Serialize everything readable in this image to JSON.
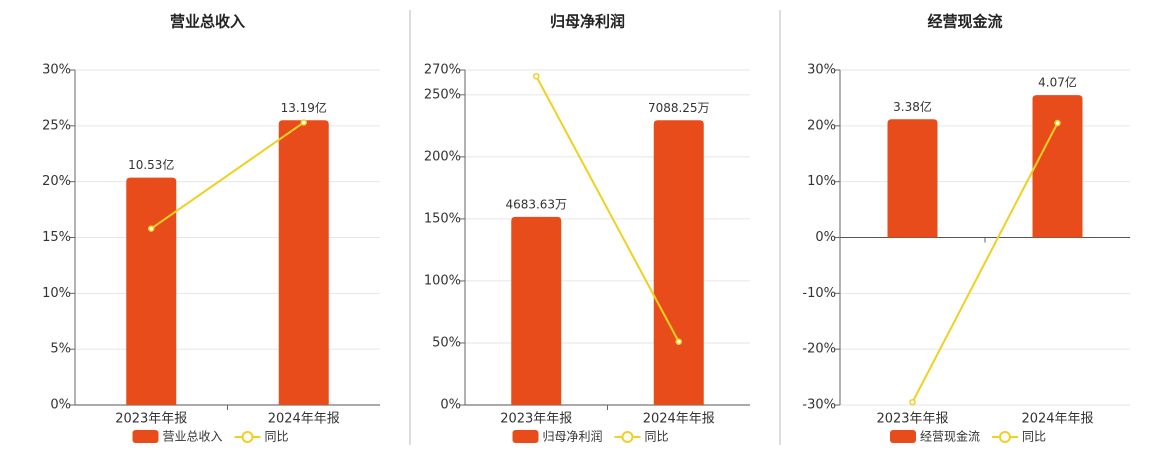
{
  "chart_data": [
    {
      "type": "combo",
      "title": "营业总收入",
      "categories": [
        "2023年年报",
        "2024年年报"
      ],
      "series": [
        {
          "name": "营业总收入",
          "type": "bar",
          "color": "#e84c1a",
          "values": [
            10.53,
            13.19
          ],
          "value_labels": [
            "10.53亿",
            "13.19亿"
          ]
        },
        {
          "name": "同比",
          "type": "line",
          "color": "#f0d020",
          "values": [
            15.8,
            25.3
          ]
        }
      ],
      "ylim": [
        0,
        30
      ],
      "yticks": [
        {
          "value": 0,
          "label": "0%"
        },
        {
          "value": 5,
          "label": "5%"
        },
        {
          "value": 10,
          "label": "10%"
        },
        {
          "value": 15,
          "label": "15%"
        },
        {
          "value": 20,
          "label": "20%"
        },
        {
          "value": 25,
          "label": "25%"
        },
        {
          "value": 30,
          "label": "30%"
        }
      ],
      "grid": true
    },
    {
      "type": "combo",
      "title": "归母净利润",
      "categories": [
        "2023年年报",
        "2024年年报"
      ],
      "series": [
        {
          "name": "归母净利润",
          "type": "bar",
          "color": "#e84c1a",
          "values": [
            4683.63,
            7088.25
          ],
          "value_labels": [
            "4683.63万",
            "7088.25万"
          ]
        },
        {
          "name": "同比",
          "type": "line",
          "color": "#f0d020",
          "values": [
            265,
            51
          ]
        }
      ],
      "ylim": [
        0,
        270
      ],
      "yticks": [
        {
          "value": 0,
          "label": "0%"
        },
        {
          "value": 50,
          "label": "50%"
        },
        {
          "value": 100,
          "label": "100%"
        },
        {
          "value": 150,
          "label": "150%"
        },
        {
          "value": 200,
          "label": "200%"
        },
        {
          "value": 250,
          "label": "250%"
        },
        {
          "value": 270,
          "label": "270%"
        }
      ],
      "grid": true
    },
    {
      "type": "combo",
      "title": "经营现金流",
      "categories": [
        "2023年年报",
        "2024年年报"
      ],
      "series": [
        {
          "name": "经营现金流",
          "type": "bar",
          "color": "#e84c1a",
          "values": [
            3.38,
            4.07
          ],
          "value_labels": [
            "3.38亿",
            "4.07亿"
          ]
        },
        {
          "name": "同比",
          "type": "line",
          "color": "#f0d020",
          "values": [
            -29.5,
            20.5
          ]
        }
      ],
      "ylim": [
        -30,
        30
      ],
      "yticks": [
        {
          "value": -30,
          "label": "-30%"
        },
        {
          "value": -20,
          "label": "-20%"
        },
        {
          "value": -10,
          "label": "-10%"
        },
        {
          "value": 0,
          "label": "0%"
        },
        {
          "value": 10,
          "label": "10%"
        },
        {
          "value": 20,
          "label": "20%"
        },
        {
          "value": 30,
          "label": "30%"
        }
      ],
      "grid": true
    }
  ]
}
